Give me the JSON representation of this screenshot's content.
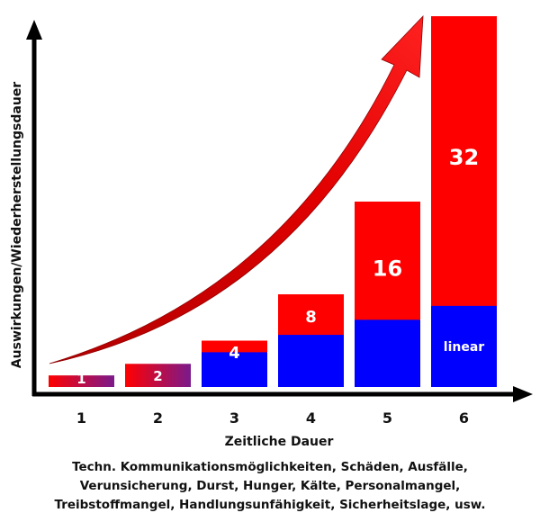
{
  "chart_data": {
    "type": "bar",
    "categories": [
      "1",
      "2",
      "3",
      "4",
      "5",
      "6"
    ],
    "series": [
      {
        "values": [
          1,
          2,
          4,
          8,
          16,
          32
        ],
        "labels": [
          "1",
          "2",
          "4",
          "8",
          "16",
          "32"
        ]
      },
      {
        "name": "linear",
        "values": [
          null,
          null,
          3,
          4.5,
          5.8,
          7
        ]
      }
    ],
    "title": "",
    "xlabel": "Zeitliche Dauer",
    "ylabel": "Auswirkungen/Wiederherstellungsdauer",
    "ylim": [
      0,
      32
    ],
    "grid": false,
    "colors": {
      "exponential": "#ff0000",
      "linear": "#0000ff",
      "gradient_end": "#7a1a8c",
      "arrow": "#d00000",
      "axis": "#000000"
    },
    "linear_label": "linear"
  },
  "caption": [
    "Techn. Kommunikationsmöglichkeiten, Schäden,  Ausfälle,",
    "Verunsicherung, Durst, Hunger, Kälte, Personalmangel,",
    "Treibstoffmangel, Handlungsunfähigkeit, Sicherheitslage, usw."
  ]
}
